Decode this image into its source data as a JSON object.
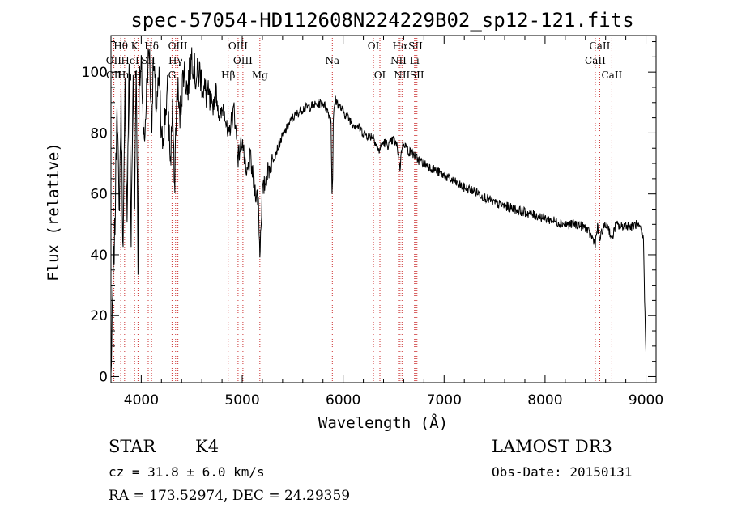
{
  "chart_data": {
    "type": "line",
    "title": "spec-57054-HD112608N224229B02_sp12-121.fits",
    "xlabel": "Wavelength (Å)",
    "ylabel": "Flux (relative)",
    "xlim": [
      3700,
      9100
    ],
    "ylim": [
      -2,
      112
    ],
    "xticks": [
      4000,
      5000,
      6000,
      7000,
      8000,
      9000
    ],
    "yticks": [
      0,
      20,
      40,
      60,
      80,
      100
    ],
    "series": [
      {
        "name": "flux",
        "x": [
          3700,
          3720,
          3740,
          3760,
          3780,
          3800,
          3820,
          3840,
          3860,
          3880,
          3900,
          3920,
          3935,
          3950,
          3968,
          3980,
          4000,
          4030,
          4060,
          4080,
          4102,
          4120,
          4150,
          4180,
          4200,
          4230,
          4260,
          4290,
          4310,
          4330,
          4340,
          4360,
          4380,
          4420,
          4460,
          4500,
          4540,
          4580,
          4620,
          4660,
          4700,
          4740,
          4780,
          4820,
          4860,
          4880,
          4920,
          4960,
          5000,
          5040,
          5080,
          5120,
          5160,
          5175,
          5185,
          5200,
          5250,
          5300,
          5400,
          5500,
          5600,
          5700,
          5800,
          5850,
          5880,
          5890,
          5896,
          5902,
          5920,
          5960,
          6000,
          6050,
          6100,
          6150,
          6200,
          6250,
          6300,
          6350,
          6400,
          6450,
          6500,
          6540,
          6563,
          6580,
          6600,
          6650,
          6700,
          6750,
          6800,
          6900,
          7000,
          7100,
          7200,
          7300,
          7400,
          7500,
          7600,
          7700,
          7800,
          7900,
          8000,
          8100,
          8200,
          8300,
          8400,
          8498,
          8520,
          8542,
          8580,
          8620,
          8662,
          8700,
          8750,
          8800,
          8850,
          8900,
          8950,
          8975,
          8990,
          9000
        ],
        "values": [
          0,
          30,
          50,
          94,
          52,
          90,
          40,
          95,
          52,
          102,
          45,
          98,
          60,
          103,
          38,
          95,
          104,
          75,
          100,
          108,
          82,
          103,
          88,
          98,
          76,
          83,
          94,
          70,
          90,
          58,
          80,
          96,
          84,
          101,
          94,
          106,
          98,
          100,
          94,
          92,
          87,
          94,
          84,
          90,
          77,
          82,
          88,
          72,
          78,
          65,
          72,
          62,
          58,
          40,
          50,
          60,
          67,
          71,
          79,
          85,
          88,
          89,
          90,
          87,
          84,
          60,
          66,
          84,
          91,
          89,
          87,
          85,
          83,
          82,
          80,
          79,
          79,
          74,
          77,
          76,
          78,
          75,
          68,
          75,
          77,
          74,
          73,
          71,
          70,
          68,
          66,
          64,
          62,
          61,
          59,
          57,
          56,
          55,
          54,
          53,
          52,
          51,
          50,
          50,
          49,
          44,
          49,
          45,
          49,
          50,
          45,
          50,
          49,
          50,
          49,
          50,
          48,
          45,
          20,
          8
        ]
      }
    ],
    "line_markers": [
      {
        "label": "Hθ",
        "wavelength": 3797,
        "row": 0
      },
      {
        "label": "K",
        "wavelength": 3934,
        "row": 0
      },
      {
        "label": "Hδ",
        "wavelength": 4102,
        "row": 0
      },
      {
        "label": "OIII",
        "wavelength": 4363,
        "row": 0
      },
      {
        "label": "OIII",
        "wavelength": 4959,
        "row": 0
      },
      {
        "label": "OI",
        "wavelength": 6300,
        "row": 0
      },
      {
        "label": "Hα",
        "wavelength": 6563,
        "row": 0
      },
      {
        "label": "SII",
        "wavelength": 6717,
        "row": 0
      },
      {
        "label": "CaII",
        "wavelength": 8542,
        "row": 0
      },
      {
        "label": "OII",
        "wavelength": 3727,
        "row": 1
      },
      {
        "label": "HeI",
        "wavelength": 3889,
        "row": 1
      },
      {
        "label": "SII",
        "wavelength": 4069,
        "row": 1
      },
      {
        "label": "Hγ",
        "wavelength": 4340,
        "row": 1
      },
      {
        "label": "OIII",
        "wavelength": 5007,
        "row": 1
      },
      {
        "label": "NII",
        "wavelength": 6548,
        "row": 1
      },
      {
        "label": "Li",
        "wavelength": 6707,
        "row": 1
      },
      {
        "label": "CaII",
        "wavelength": 8498,
        "row": 1
      },
      {
        "label": "OII",
        "wavelength": 3729,
        "row": 2
      },
      {
        "label": "Hη",
        "wavelength": 3835,
        "row": 2
      },
      {
        "label": "H",
        "wavelength": 3968,
        "row": 2
      },
      {
        "label": "G",
        "wavelength": 4305,
        "row": 2
      },
      {
        "label": "Hβ",
        "wavelength": 4861,
        "row": 2
      },
      {
        "label": "Mg",
        "wavelength": 5175,
        "row": 2
      },
      {
        "label": "OI",
        "wavelength": 6364,
        "row": 2
      },
      {
        "label": "NII",
        "wavelength": 6583,
        "row": 2
      },
      {
        "label": "SII",
        "wavelength": 6731,
        "row": 2
      },
      {
        "label": "CaII",
        "wavelength": 8662,
        "row": 2
      },
      {
        "label": "Na",
        "wavelength": 5893,
        "row": 1
      }
    ]
  },
  "info": {
    "object_type": "STAR",
    "spectral_class": "K4",
    "survey": "LAMOST DR3",
    "redshift": "cz = 31.8 ± 6.0 km/s",
    "obs_date": "Obs-Date: 20150131",
    "coords": "RA = 173.52974, DEC =  24.29359"
  },
  "colors": {
    "marker_line": "#cc3333",
    "spectrum": "#000000",
    "axes": "#000000"
  }
}
